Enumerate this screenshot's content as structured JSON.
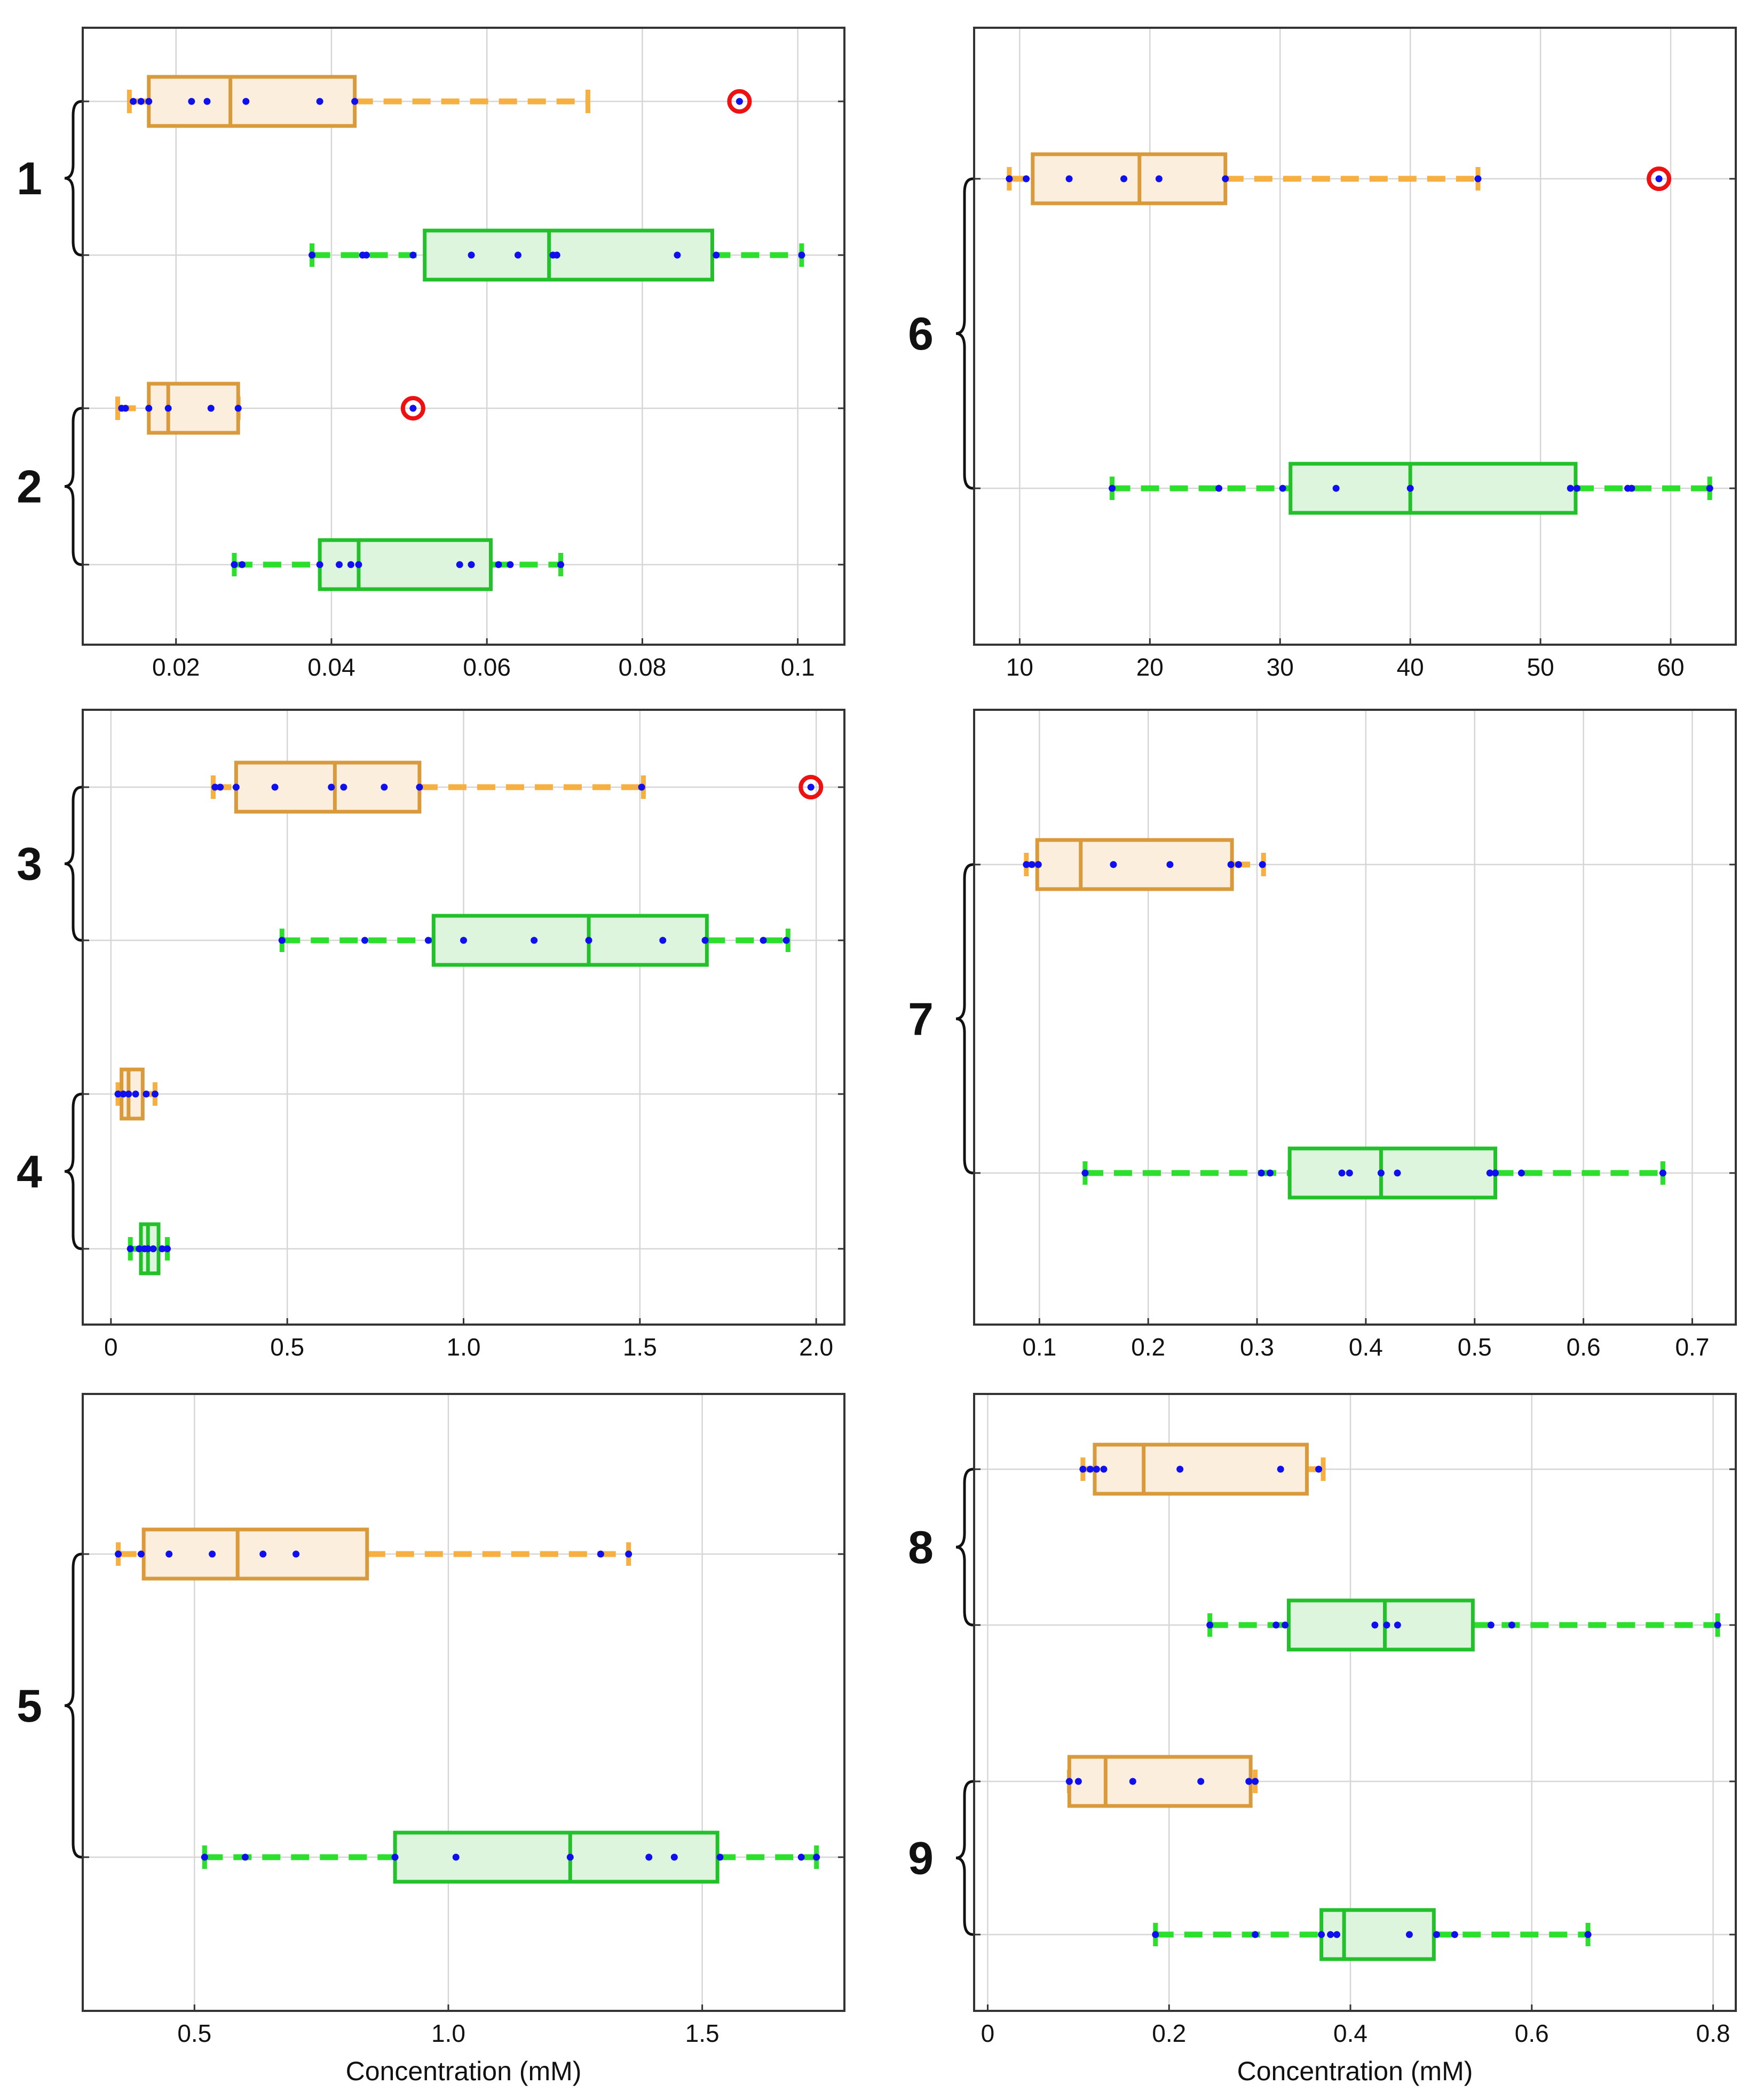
{
  "colors": {
    "orange_box": "#d99a3c",
    "orange_fill": "#fbeedd",
    "orange_whisker": "#f5b041",
    "green_box": "#22c02a",
    "green_fill": "#dcf5dc",
    "green_whisker": "#2ddf2d",
    "points": "#1010ee",
    "outlier": "#ee1111",
    "grid": "#d6d6d6",
    "axis": "#333333"
  },
  "chart_data": [
    {
      "type": "box",
      "xlim": [
        0.008,
        0.106
      ],
      "xticks": [
        0.02,
        0.04,
        0.06,
        0.08,
        0.1
      ],
      "xticklabels": [
        "0.02",
        "0.04",
        "0.06",
        "0.08",
        "0.1"
      ],
      "xlabel": "",
      "groups": [
        {
          "label": "1",
          "rows": [
            0,
            1
          ]
        },
        {
          "label": "2",
          "rows": [
            2,
            3
          ]
        }
      ],
      "rows": [
        {
          "color": "orange",
          "whisker_low": 0.014,
          "q1": 0.0165,
          "median": 0.027,
          "q3": 0.043,
          "whisker_high": 0.073,
          "points": [
            0.0145,
            0.0155,
            0.0165,
            0.022,
            0.024,
            0.029,
            0.0385,
            0.043
          ],
          "outliers": [
            0.0925
          ]
        },
        {
          "color": "green",
          "whisker_low": 0.0375,
          "q1": 0.052,
          "median": 0.068,
          "q3": 0.089,
          "whisker_high": 0.1005,
          "points": [
            0.0375,
            0.044,
            0.0445,
            0.0505,
            0.058,
            0.064,
            0.0685,
            0.069,
            0.0845,
            0.0895,
            0.1005
          ],
          "outliers": []
        },
        {
          "color": "orange",
          "whisker_low": 0.0125,
          "q1": 0.0165,
          "median": 0.019,
          "q3": 0.028,
          "whisker_high": 0.028,
          "points": [
            0.013,
            0.0135,
            0.0165,
            0.019,
            0.0245,
            0.028
          ],
          "outliers": [
            0.0505
          ]
        },
        {
          "color": "green",
          "whisker_low": 0.0275,
          "q1": 0.0385,
          "median": 0.0435,
          "q3": 0.0605,
          "whisker_high": 0.0695,
          "points": [
            0.0275,
            0.0285,
            0.0385,
            0.041,
            0.0425,
            0.0435,
            0.0565,
            0.058,
            0.0615,
            0.063,
            0.0695
          ],
          "outliers": []
        }
      ]
    },
    {
      "type": "box",
      "xlim": [
        6.5,
        65
      ],
      "xticks": [
        10,
        20,
        30,
        40,
        50,
        60
      ],
      "xticklabels": [
        "10",
        "20",
        "30",
        "40",
        "50",
        "60"
      ],
      "xlabel": "",
      "groups": [
        {
          "label": "6",
          "rows": [
            0,
            1
          ]
        }
      ],
      "rows": [
        {
          "color": "orange",
          "whisker_low": 9.2,
          "q1": 11.0,
          "median": 19.2,
          "q3": 25.8,
          "whisker_high": 45.2,
          "points": [
            9.2,
            10.5,
            13.8,
            18.0,
            20.7,
            25.8,
            45.2
          ],
          "outliers": [
            59.1
          ]
        },
        {
          "color": "green",
          "whisker_low": 17.1,
          "q1": 30.8,
          "median": 40.0,
          "q3": 52.7,
          "whisker_high": 63.0,
          "points": [
            17.1,
            25.3,
            30.2,
            34.3,
            40.0,
            52.3,
            52.8,
            56.7,
            57.0,
            63.0
          ],
          "outliers": []
        }
      ]
    },
    {
      "type": "box",
      "xlim": [
        -0.08,
        2.08
      ],
      "xticks": [
        0,
        0.5,
        1.0,
        1.5,
        2.0
      ],
      "xticklabels": [
        "0",
        "0.5",
        "1.0",
        "1.5",
        "2.0"
      ],
      "xlabel": "",
      "groups": [
        {
          "label": "3",
          "rows": [
            0,
            1
          ]
        },
        {
          "label": "4",
          "rows": [
            2,
            3
          ]
        }
      ],
      "rows": [
        {
          "color": "orange",
          "whisker_low": 0.29,
          "q1": 0.355,
          "median": 0.635,
          "q3": 0.875,
          "whisker_high": 1.51,
          "points": [
            0.295,
            0.31,
            0.355,
            0.465,
            0.625,
            0.66,
            0.775,
            0.875,
            1.505
          ],
          "outliers": [
            1.985
          ]
        },
        {
          "color": "green",
          "whisker_low": 0.485,
          "q1": 0.915,
          "median": 1.355,
          "q3": 1.69,
          "whisker_high": 1.92,
          "points": [
            0.485,
            0.72,
            0.9,
            1.0,
            1.2,
            1.355,
            1.565,
            1.685,
            1.85,
            1.915
          ],
          "outliers": []
        },
        {
          "color": "orange",
          "whisker_low": 0.02,
          "q1": 0.03,
          "median": 0.05,
          "q3": 0.09,
          "whisker_high": 0.125,
          "points": [
            0.02,
            0.035,
            0.05,
            0.07,
            0.1,
            0.125
          ],
          "outliers": []
        },
        {
          "color": "green",
          "whisker_low": 0.055,
          "q1": 0.085,
          "median": 0.105,
          "q3": 0.135,
          "whisker_high": 0.16,
          "points": [
            0.055,
            0.08,
            0.095,
            0.105,
            0.12,
            0.145,
            0.16
          ],
          "outliers": []
        }
      ]
    },
    {
      "type": "box",
      "xlim": [
        0.04,
        0.74
      ],
      "xticks": [
        0.1,
        0.2,
        0.3,
        0.4,
        0.5,
        0.6,
        0.7
      ],
      "xticklabels": [
        "0.1",
        "0.2",
        "0.3",
        "0.4",
        "0.5",
        "0.6",
        "0.7"
      ],
      "xlabel": "",
      "groups": [
        {
          "label": "7",
          "rows": [
            0,
            1
          ]
        }
      ],
      "rows": [
        {
          "color": "orange",
          "whisker_low": 0.088,
          "q1": 0.098,
          "median": 0.138,
          "q3": 0.277,
          "whisker_high": 0.306,
          "points": [
            0.088,
            0.093,
            0.099,
            0.168,
            0.22,
            0.276,
            0.283,
            0.305
          ],
          "outliers": []
        },
        {
          "color": "green",
          "whisker_low": 0.142,
          "q1": 0.33,
          "median": 0.414,
          "q3": 0.519,
          "whisker_high": 0.673,
          "points": [
            0.142,
            0.304,
            0.312,
            0.378,
            0.385,
            0.414,
            0.429,
            0.514,
            0.519,
            0.543,
            0.673
          ],
          "outliers": []
        }
      ]
    },
    {
      "type": "box",
      "xlim": [
        0.28,
        1.78
      ],
      "xticks": [
        0.5,
        1.0,
        1.5
      ],
      "xticklabels": [
        "0.5",
        "1.0",
        "1.5"
      ],
      "xlabel": "Concentration (mM)",
      "groups": [
        {
          "label": "5",
          "rows": [
            0,
            1
          ]
        }
      ],
      "rows": [
        {
          "color": "orange",
          "whisker_low": 0.35,
          "q1": 0.4,
          "median": 0.585,
          "q3": 0.84,
          "whisker_high": 1.355,
          "points": [
            0.35,
            0.395,
            0.45,
            0.535,
            0.635,
            0.7,
            1.3,
            1.355
          ],
          "outliers": []
        },
        {
          "color": "green",
          "whisker_low": 0.52,
          "q1": 0.895,
          "median": 1.24,
          "q3": 1.53,
          "whisker_high": 1.725,
          "points": [
            0.52,
            0.6,
            0.895,
            1.015,
            1.24,
            1.395,
            1.445,
            1.535,
            1.695,
            1.725
          ],
          "outliers": []
        }
      ]
    },
    {
      "type": "box",
      "xlim": [
        -0.015,
        0.825
      ],
      "xticks": [
        0,
        0.2,
        0.4,
        0.6,
        0.8
      ],
      "xticklabels": [
        "0",
        "0.2",
        "0.4",
        "0.6",
        "0.8"
      ],
      "xlabel": "Concentration (mM)",
      "groups": [
        {
          "label": "8",
          "rows": [
            0,
            1
          ]
        },
        {
          "label": "9",
          "rows": [
            2,
            3
          ]
        }
      ],
      "rows": [
        {
          "color": "orange",
          "whisker_low": 0.105,
          "q1": 0.118,
          "median": 0.172,
          "q3": 0.352,
          "whisker_high": 0.37,
          "points": [
            0.105,
            0.113,
            0.12,
            0.128,
            0.212,
            0.323,
            0.365
          ],
          "outliers": []
        },
        {
          "color": "green",
          "whisker_low": 0.245,
          "q1": 0.332,
          "median": 0.438,
          "q3": 0.535,
          "whisker_high": 0.805,
          "points": [
            0.245,
            0.318,
            0.328,
            0.427,
            0.44,
            0.452,
            0.555,
            0.578,
            0.805
          ],
          "outliers": []
        },
        {
          "color": "orange",
          "whisker_low": 0.09,
          "q1": 0.09,
          "median": 0.13,
          "q3": 0.29,
          "whisker_high": 0.295,
          "points": [
            0.09,
            0.1,
            0.16,
            0.235,
            0.288,
            0.295
          ],
          "outliers": []
        },
        {
          "color": "green",
          "whisker_low": 0.185,
          "q1": 0.368,
          "median": 0.393,
          "q3": 0.492,
          "whisker_high": 0.662,
          "points": [
            0.185,
            0.295,
            0.368,
            0.378,
            0.385,
            0.465,
            0.495,
            0.515,
            0.662
          ],
          "outliers": []
        }
      ]
    }
  ]
}
